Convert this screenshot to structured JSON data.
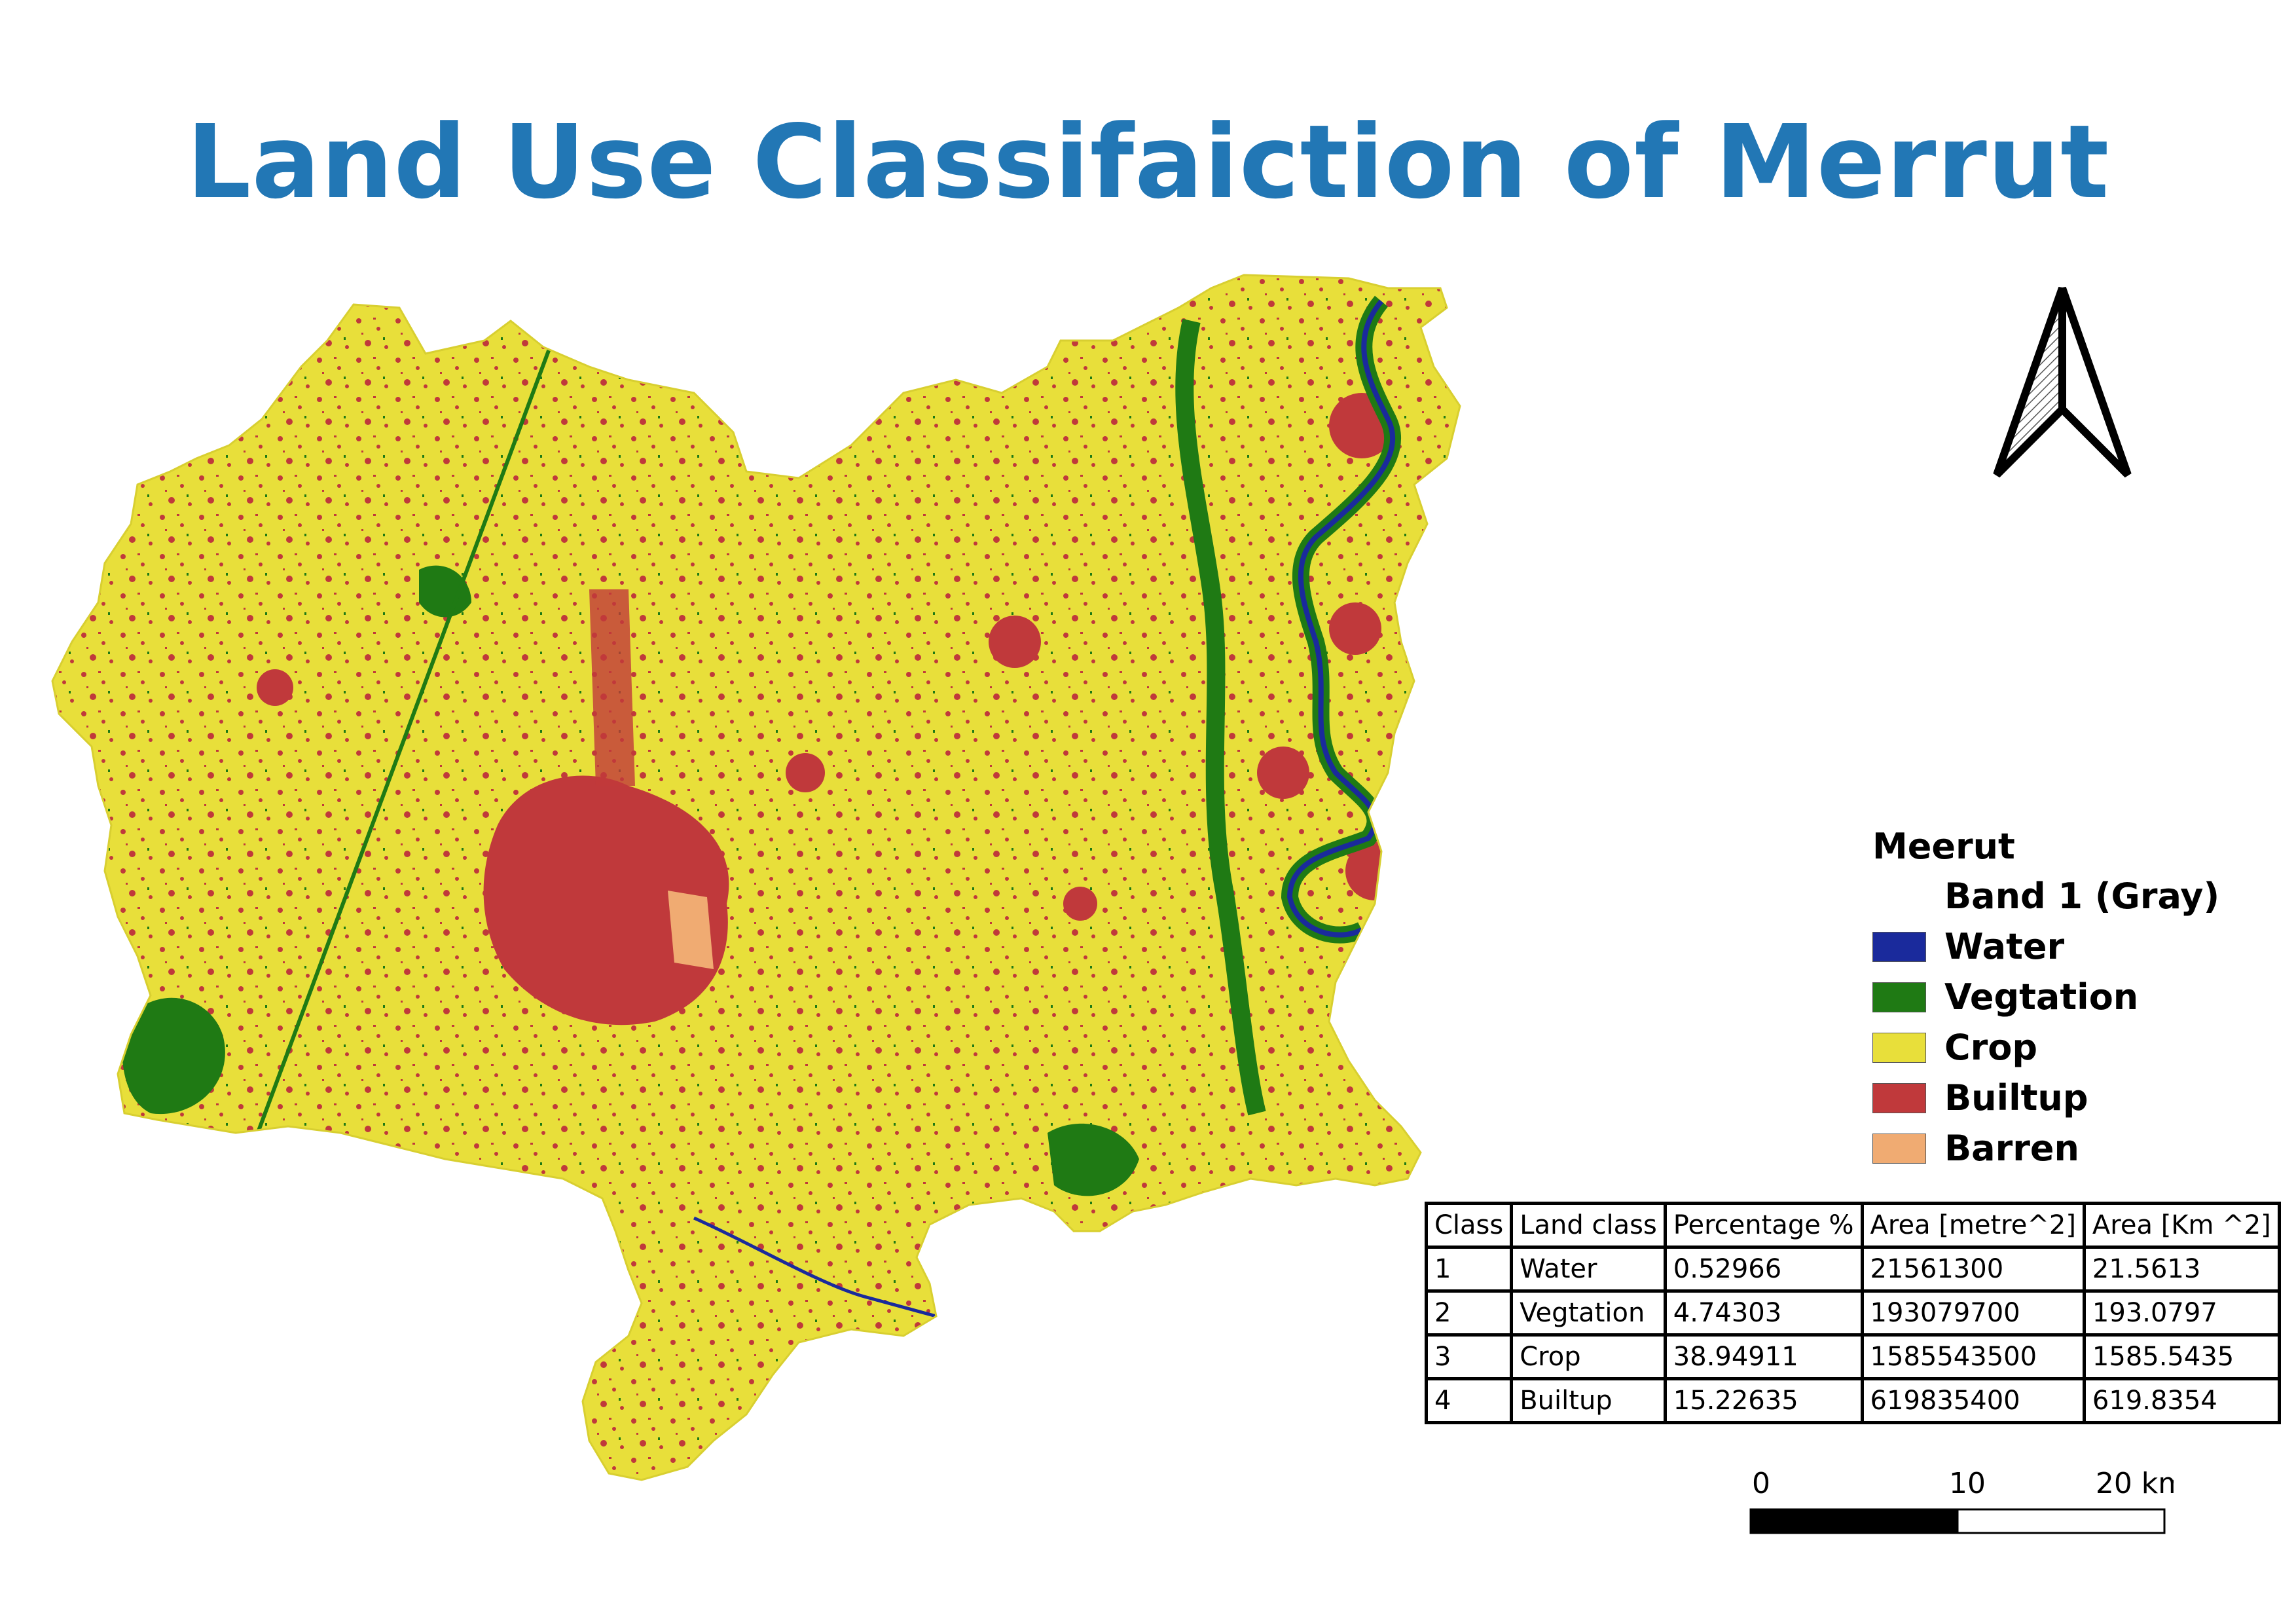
{
  "title": "Land Use Classifaiction of Merrut",
  "map": {
    "layer": "Meerut",
    "colors": {
      "crop": "#e8df3a",
      "builtup": "#c0393b",
      "vegetation": "#1f7a14",
      "water": "#1a2a9c",
      "barren": "#f0ab72"
    }
  },
  "legend": {
    "title": "Meerut",
    "subtitle": "Band 1 (Gray)",
    "items": [
      {
        "label": "Water",
        "color": "#1a2a9c"
      },
      {
        "label": "Vegtation",
        "color": "#1f7a14"
      },
      {
        "label": "Crop",
        "color": "#e8df3a"
      },
      {
        "label": "Builtup",
        "color": "#c0393b"
      },
      {
        "label": "Barren",
        "color": "#f0ab72"
      }
    ]
  },
  "table": {
    "headers": [
      "Class",
      "Land class",
      "Percentage %",
      "Area [metre^2]",
      "Area [Km ^2]"
    ],
    "rows": [
      [
        "1",
        "Water",
        "0.52966",
        "21561300",
        "21.5613"
      ],
      [
        "2",
        "Vegtation",
        "4.74303",
        "193079700",
        "193.0797"
      ],
      [
        "3",
        "Crop",
        "38.94911",
        "1585543500",
        "1585.5435"
      ],
      [
        "4",
        "Builtup",
        "15.22635",
        "619835400",
        "619.8354"
      ]
    ]
  },
  "scalebar": {
    "ticks": [
      "0",
      "10",
      "20 km"
    ]
  },
  "north_arrow": {
    "icon": "north-arrow-icon"
  }
}
